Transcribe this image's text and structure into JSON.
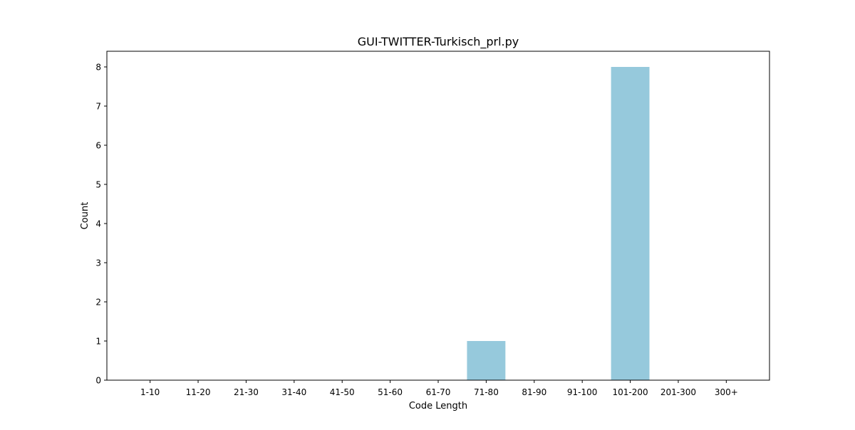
{
  "chart_data": {
    "type": "bar",
    "title": "GUI-TWITTER-Turkisch_prl.py",
    "xlabel": "Code Length",
    "ylabel": "Count",
    "categories": [
      "1-10",
      "11-20",
      "21-30",
      "31-40",
      "41-50",
      "51-60",
      "61-70",
      "71-80",
      "81-90",
      "91-100",
      "101-200",
      "201-300",
      "300+"
    ],
    "values": [
      0,
      0,
      0,
      0,
      0,
      0,
      0,
      1,
      0,
      0,
      8,
      0,
      0
    ],
    "ylim": [
      0,
      8.4
    ],
    "yticks": [
      0,
      1,
      2,
      3,
      4,
      5,
      6,
      7,
      8
    ],
    "bar_color": "#96c9dc",
    "grid": false,
    "legend": "none"
  }
}
